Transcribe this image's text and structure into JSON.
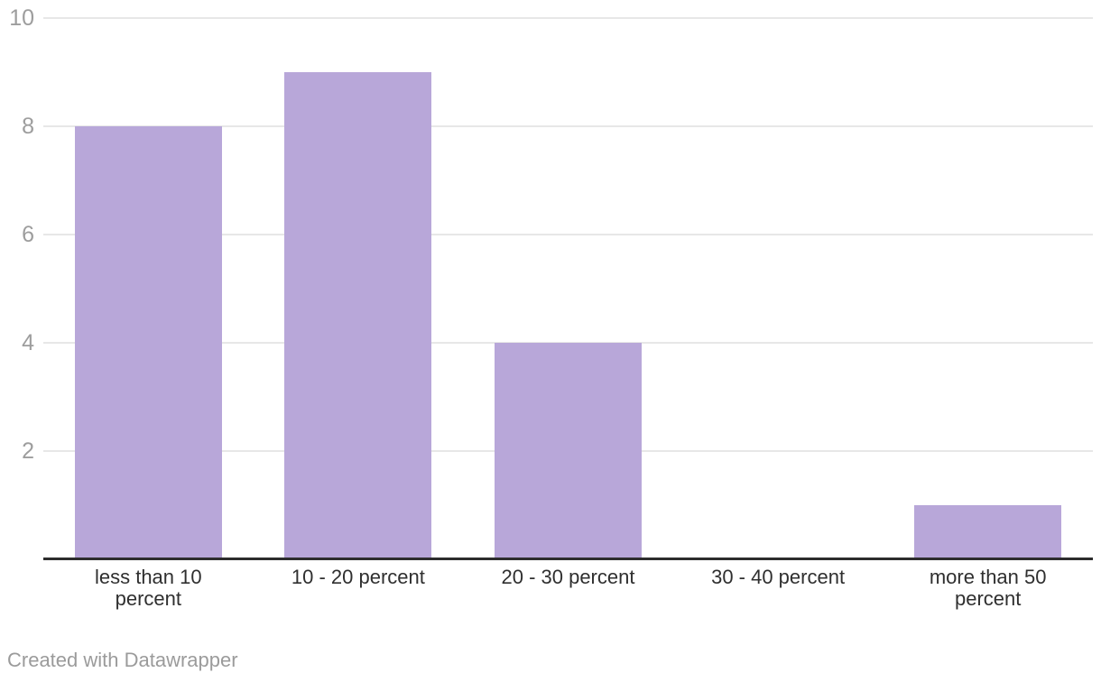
{
  "footer": {
    "credit": "Created with Datawrapper"
  },
  "colors": {
    "bar": "#b8a7d9",
    "gridline": "#e7e7e7",
    "axis_line": "#2d2d2d",
    "y_tick_label": "#9d9d9d",
    "x_tick_label": "#2f2f2f",
    "credit_text": "#9b9b9b",
    "background": "#ffffff"
  },
  "chart_data": {
    "type": "bar",
    "categories": [
      "less than 10 percent",
      "10 - 20 percent",
      "20 - 30 percent",
      "30 - 40 percent",
      "more than 50 percent"
    ],
    "values": [
      8,
      9,
      4,
      0,
      1
    ],
    "title": "",
    "xlabel": "",
    "ylabel": "",
    "ylim": [
      0,
      10
    ],
    "yticks": [
      2,
      4,
      6,
      8,
      10
    ],
    "grid": "horizontal",
    "legend": "none",
    "bar_color": "#b8a7d9",
    "credit": "Created with Datawrapper"
  }
}
